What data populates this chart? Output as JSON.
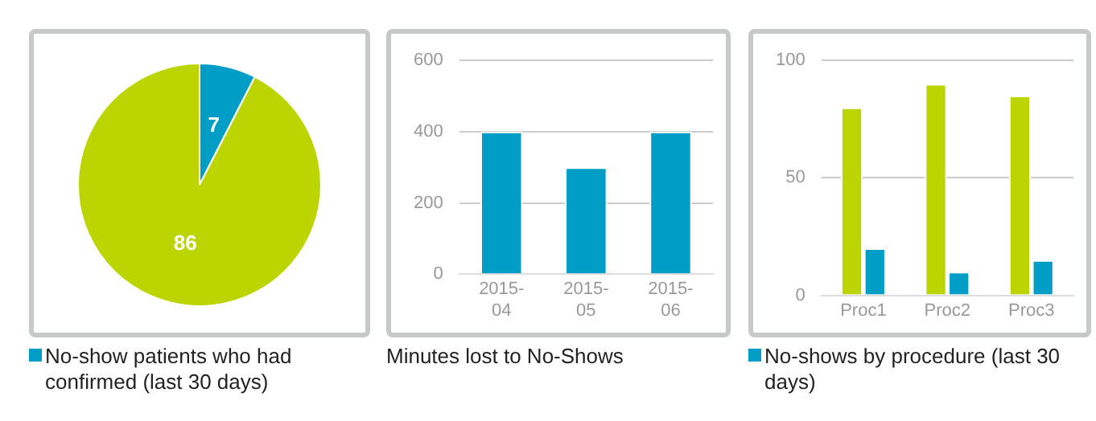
{
  "chart_data": [
    {
      "type": "pie",
      "categories": [
        "No-show patients who had confirmed (last 30 days)",
        null
      ],
      "values": [
        7,
        86
      ],
      "colors": [
        "#009ec6",
        "#bcd400"
      ],
      "data_labels": true,
      "legend": "bottom"
    },
    {
      "type": "bar",
      "title": "Minutes lost to No-Shows",
      "categories": [
        "2015-04",
        "2015-05",
        "2015-06"
      ],
      "values": [
        400,
        300,
        400
      ],
      "color": "#009ec6",
      "ylim": [
        0,
        600
      ],
      "yticks": [
        0,
        200,
        400,
        600
      ],
      "grid": "y"
    },
    {
      "type": "bar",
      "categories": [
        "Proc1",
        "Proc2",
        "Proc3"
      ],
      "series": [
        {
          "color": "#bcd400",
          "values": [
            80,
            90,
            85
          ]
        },
        {
          "name": "No-shows by procedure (last 30 days)",
          "color": "#009ec6",
          "values": [
            20,
            10,
            15
          ]
        }
      ],
      "ylim": [
        0,
        100
      ],
      "yticks": [
        0,
        50,
        100
      ],
      "grid": "y",
      "legend": "bottom"
    }
  ]
}
